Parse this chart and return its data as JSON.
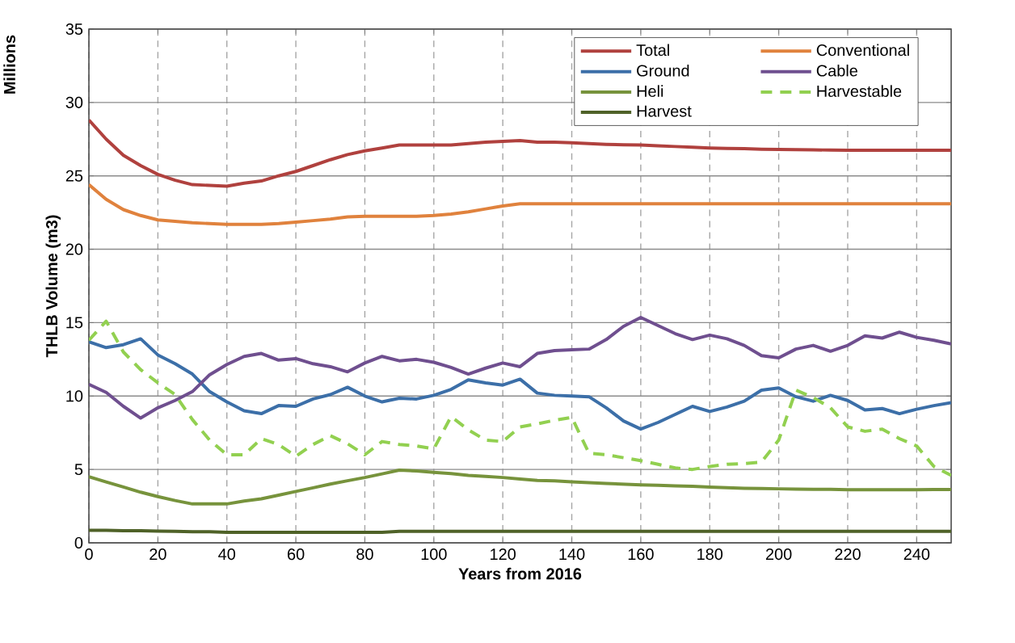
{
  "chart_data": {
    "type": "line",
    "xlabel": "Years from 2016",
    "ylabel": "THLB Volume (m3)",
    "annotations": [
      "Millions"
    ],
    "x": [
      0,
      5,
      10,
      15,
      20,
      25,
      30,
      35,
      40,
      45,
      50,
      55,
      60,
      65,
      70,
      75,
      80,
      85,
      90,
      95,
      100,
      105,
      110,
      115,
      120,
      125,
      130,
      135,
      140,
      145,
      150,
      155,
      160,
      165,
      170,
      175,
      180,
      185,
      190,
      195,
      200,
      205,
      210,
      215,
      220,
      225,
      230,
      235,
      240,
      245,
      250
    ],
    "series": [
      {
        "name": "Total",
        "color": "#b0413e",
        "values": [
          28.8,
          27.5,
          26.4,
          25.7,
          25.1,
          24.7,
          24.4,
          24.35,
          24.3,
          24.5,
          24.65,
          25.0,
          25.3,
          25.7,
          26.1,
          26.45,
          26.7,
          26.9,
          27.1,
          27.1,
          27.1,
          27.1,
          27.2,
          27.3,
          27.35,
          27.4,
          27.3,
          27.3,
          27.25,
          27.2,
          27.15,
          27.12,
          27.1,
          27.05,
          27.0,
          26.95,
          26.9,
          26.87,
          26.85,
          26.82,
          26.8,
          26.78,
          26.77,
          26.76,
          26.75,
          26.74,
          26.74,
          26.74,
          26.74,
          26.74,
          26.75
        ]
      },
      {
        "name": "Conventional",
        "color": "#e0823d",
        "values": [
          24.4,
          23.4,
          22.7,
          22.3,
          22.0,
          21.9,
          21.8,
          21.75,
          21.7,
          21.7,
          21.7,
          21.75,
          21.85,
          21.95,
          22.05,
          22.2,
          22.25,
          22.25,
          22.25,
          22.25,
          22.3,
          22.4,
          22.55,
          22.75,
          22.95,
          23.1,
          23.1,
          23.1,
          23.1,
          23.1,
          23.1,
          23.1,
          23.1,
          23.1,
          23.1,
          23.1,
          23.1,
          23.1,
          23.1,
          23.1,
          23.1,
          23.1,
          23.1,
          23.1,
          23.1,
          23.1,
          23.1,
          23.1,
          23.1,
          23.1,
          23.1
        ]
      },
      {
        "name": "Ground",
        "color": "#3c6fa8",
        "values": [
          13.7,
          13.3,
          13.5,
          13.9,
          12.8,
          12.2,
          11.5,
          10.3,
          9.6,
          9.0,
          8.8,
          9.35,
          9.3,
          9.8,
          10.1,
          10.6,
          10.0,
          9.6,
          9.85,
          9.8,
          10.05,
          10.45,
          11.1,
          10.9,
          10.75,
          11.15,
          10.2,
          10.05,
          10.0,
          9.95,
          9.2,
          8.3,
          7.75,
          8.2,
          8.75,
          9.3,
          8.95,
          9.25,
          9.65,
          10.4,
          10.55,
          9.95,
          9.65,
          10.05,
          9.7,
          9.05,
          9.15,
          8.8,
          9.1,
          9.35,
          9.55
        ]
      },
      {
        "name": "Cable",
        "color": "#6f4f8f",
        "values": [
          10.8,
          10.25,
          9.3,
          8.5,
          9.2,
          9.7,
          10.3,
          11.45,
          12.15,
          12.7,
          12.9,
          12.45,
          12.55,
          12.2,
          12.0,
          11.65,
          12.25,
          12.7,
          12.4,
          12.5,
          12.3,
          11.95,
          11.5,
          11.9,
          12.25,
          12.0,
          12.9,
          13.1,
          13.15,
          13.2,
          13.85,
          14.75,
          15.35,
          14.8,
          14.25,
          13.85,
          14.15,
          13.9,
          13.45,
          12.75,
          12.6,
          13.2,
          13.45,
          13.05,
          13.45,
          14.1,
          13.95,
          14.35,
          14.0,
          13.8,
          13.55
        ]
      },
      {
        "name": "Heli",
        "color": "#77933c",
        "values": [
          4.5,
          4.15,
          3.8,
          3.45,
          3.15,
          2.88,
          2.65,
          2.65,
          2.65,
          2.85,
          3.0,
          3.25,
          3.5,
          3.75,
          4.0,
          4.23,
          4.45,
          4.7,
          4.95,
          4.9,
          4.8,
          4.72,
          4.6,
          4.52,
          4.45,
          4.35,
          4.25,
          4.22,
          4.15,
          4.1,
          4.05,
          4.0,
          3.95,
          3.92,
          3.88,
          3.85,
          3.8,
          3.76,
          3.72,
          3.7,
          3.68,
          3.66,
          3.65,
          3.64,
          3.62,
          3.62,
          3.62,
          3.62,
          3.62,
          3.63,
          3.63
        ]
      },
      {
        "name": "Harvestable",
        "color": "#92d050",
        "line_style": "dashed",
        "values": [
          13.8,
          15.1,
          13.0,
          11.8,
          10.9,
          10.1,
          8.4,
          7.0,
          6.0,
          6.0,
          7.1,
          6.7,
          5.9,
          6.7,
          7.3,
          6.75,
          6.0,
          6.9,
          6.7,
          6.6,
          6.4,
          8.6,
          7.7,
          7.0,
          6.9,
          7.9,
          8.1,
          8.35,
          8.55,
          6.1,
          6.0,
          5.8,
          5.6,
          5.35,
          5.1,
          5.0,
          5.2,
          5.35,
          5.4,
          5.5,
          7.0,
          10.4,
          9.9,
          9.2,
          7.9,
          7.6,
          7.75,
          7.1,
          6.6,
          5.2,
          4.6
        ]
      },
      {
        "name": "Harvest",
        "color": "#4f6228",
        "values": [
          0.85,
          0.85,
          0.83,
          0.82,
          0.8,
          0.78,
          0.76,
          0.75,
          0.72,
          0.72,
          0.72,
          0.72,
          0.72,
          0.72,
          0.72,
          0.72,
          0.72,
          0.72,
          0.78,
          0.78,
          0.78,
          0.78,
          0.78,
          0.78,
          0.78,
          0.78,
          0.78,
          0.78,
          0.78,
          0.78,
          0.78,
          0.78,
          0.78,
          0.78,
          0.78,
          0.78,
          0.78,
          0.78,
          0.78,
          0.78,
          0.78,
          0.78,
          0.78,
          0.78,
          0.78,
          0.78,
          0.78,
          0.78,
          0.78,
          0.78,
          0.78
        ]
      }
    ],
    "xlim": [
      0,
      250
    ],
    "xticks": [
      0,
      20,
      40,
      60,
      80,
      100,
      120,
      140,
      160,
      180,
      200,
      220,
      240
    ],
    "ylim": [
      0,
      35
    ],
    "yticks": [
      0,
      5,
      10,
      15,
      20,
      25,
      30,
      35
    ],
    "grid": true,
    "legend": "top right",
    "marker": "none",
    "line_style": "solid"
  }
}
